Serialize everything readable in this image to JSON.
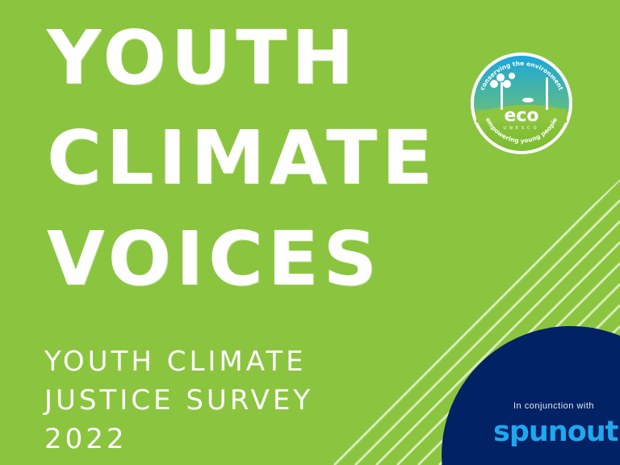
{
  "title": {
    "lines": [
      "YOUTH",
      "CLIMATE",
      "VOICES"
    ]
  },
  "subtitle": {
    "lines": [
      "YOUTH CLIMATE",
      "JUSTICE SURVEY",
      "2022"
    ]
  },
  "logo_eco": {
    "top_text": "conserving the environment",
    "name": "eco",
    "sub": "UNESCO",
    "bottom_text": "empowering young people"
  },
  "partner": {
    "label": "In conjunction with",
    "name": "spunout"
  },
  "colors": {
    "background": "#8bc53f",
    "circle": "#012265",
    "spunout": "#1fa8ee",
    "text": "#ffffff"
  }
}
